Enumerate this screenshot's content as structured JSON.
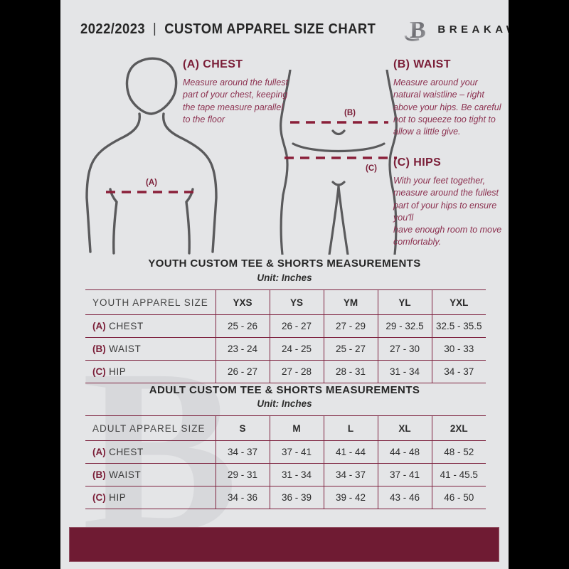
{
  "header": {
    "edition": "2022/2023",
    "separator": "|",
    "title": "CUSTOM APPAREL SIZE CHART",
    "brand": "BREAKAWAY",
    "logo_letter": "B"
  },
  "instructions": [
    {
      "id": "A",
      "heading": "(A) CHEST",
      "body": "Measure around the fullest part of your chest, keeping the tape measure parallel to the floor"
    },
    {
      "id": "B",
      "heading": "(B) WAIST",
      "body": "Measure around your natural waistline – right above your hips. Be careful not to squeeze too tight to allow a little give."
    },
    {
      "id": "C",
      "heading": "(C) HIPS",
      "body": "With your feet together, measure around the fullest part of your hips to ensure you'll\nhave enough room to move comfortably."
    }
  ],
  "figure_labels": {
    "chest": "(A)",
    "waist": "(B)",
    "hips": "(C)"
  },
  "tables": [
    {
      "title": "YOUTH CUSTOM TEE & SHORTS MEASUREMENTS",
      "unit": "Unit: Inches",
      "header": [
        "YOUTH APPAREL SIZE",
        "YXS",
        "YS",
        "YM",
        "YL",
        "YXL"
      ],
      "rows": [
        {
          "prefix": "(A)",
          "label": "CHEST",
          "values": [
            "25 - 26",
            "26 - 27",
            "27 - 29",
            "29 - 32.5",
            "32.5 - 35.5"
          ]
        },
        {
          "prefix": "(B)",
          "label": "WAIST",
          "values": [
            "23 - 24",
            "24 - 25",
            "25 - 27",
            "27 - 30",
            "30 - 33"
          ]
        },
        {
          "prefix": "(C)",
          "label": "HIP",
          "values": [
            "26 - 27",
            "27 - 28",
            "28 - 31",
            "31 - 34",
            "34 - 37"
          ]
        }
      ]
    },
    {
      "title": "ADULT CUSTOM TEE & SHORTS MEASUREMENTS",
      "unit": "Unit: Inches",
      "header": [
        "ADULT APPAREL SIZE",
        "S",
        "M",
        "L",
        "XL",
        "2XL"
      ],
      "rows": [
        {
          "prefix": "(A)",
          "label": "CHEST",
          "values": [
            "34 - 37",
            "37 - 41",
            "41 - 44",
            "44 - 48",
            "48 - 52"
          ]
        },
        {
          "prefix": "(B)",
          "label": "WAIST",
          "values": [
            "29 - 31",
            "31 - 34",
            "34 - 37",
            "37 - 41",
            "41 - 45.5"
          ]
        },
        {
          "prefix": "(C)",
          "label": "HIP",
          "values": [
            "34 - 36",
            "36 - 39",
            "39 - 42",
            "43 - 46",
            "46 - 50"
          ]
        }
      ]
    }
  ],
  "colors": {
    "maroon": "#7a1d37",
    "table_line": "#7e2340",
    "footer": "#6f1b33",
    "page_bg": "#e4e5e7",
    "figure_stroke": "#5a5a5c"
  }
}
